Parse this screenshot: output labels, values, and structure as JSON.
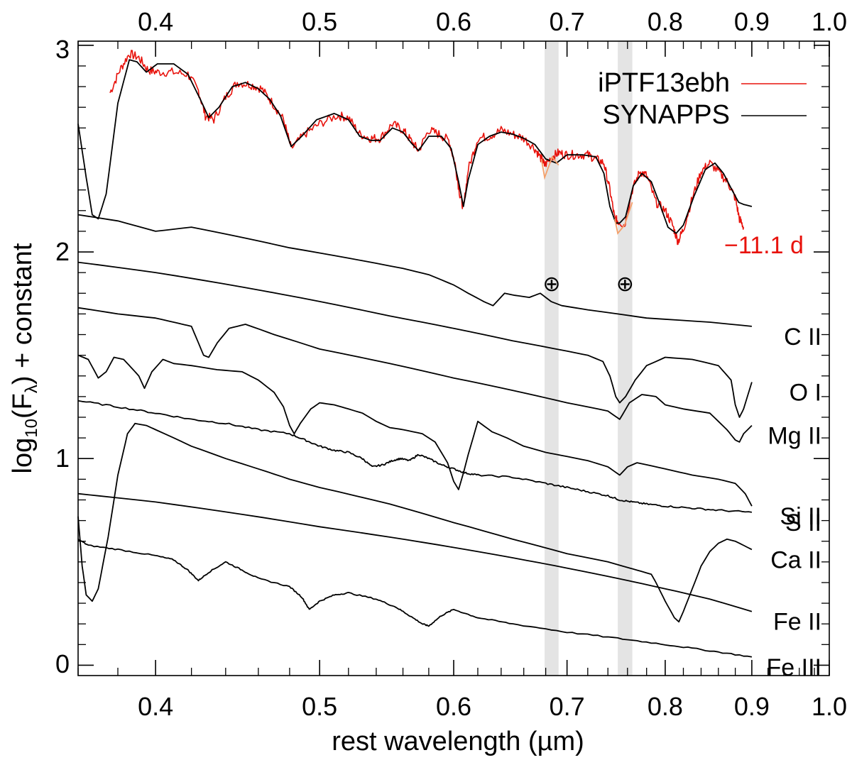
{
  "chart_data": {
    "type": "line",
    "xlabel": "rest wavelength (µm)",
    "ylabel_parts": [
      "log",
      "10",
      "(F",
      "λ",
      ") + constant"
    ],
    "x_scale": "log",
    "xlim": [
      0.36,
      1.0
    ],
    "ylim": [
      -0.05,
      3.02
    ],
    "x_ticks": [
      0.4,
      0.5,
      0.6,
      0.7,
      0.8,
      0.9,
      1.0
    ],
    "x_tick_labels": [
      "0.4",
      "0.5",
      "0.6",
      "0.7",
      "0.8",
      "0.9",
      "1.0"
    ],
    "y_ticks": [
      0,
      1,
      2,
      3
    ],
    "y_tick_labels": [
      "0",
      "1",
      "2",
      "3"
    ],
    "legend": {
      "position": "top-right",
      "entries": [
        {
          "label": "iPTF13ebh",
          "color": "#e8120c"
        },
        {
          "label": "SYNAPPS",
          "color": "#000000"
        }
      ]
    },
    "phase_label": "−11.1 d",
    "phase_color": "#e8120c",
    "telluric_bands": [
      [
        0.679,
        0.692
      ],
      [
        0.75,
        0.765
      ]
    ],
    "telluric_symbol": "⊕",
    "telluric_color": "#e4e4e4",
    "telluric_flux_color": "#f4a06a",
    "series": [
      {
        "name": "iPTF13ebh",
        "color": "#e8120c",
        "noise": 0.022,
        "x": [
          0.376,
          0.381,
          0.386,
          0.391,
          0.396,
          0.401,
          0.409,
          0.418,
          0.424,
          0.428,
          0.433,
          0.44,
          0.447,
          0.455,
          0.462,
          0.469,
          0.476,
          0.481,
          0.49,
          0.5,
          0.512,
          0.52,
          0.528,
          0.536,
          0.543,
          0.552,
          0.56,
          0.566,
          0.572,
          0.58,
          0.588,
          0.596,
          0.601,
          0.605,
          0.608,
          0.612,
          0.62,
          0.63,
          0.64,
          0.65,
          0.66,
          0.67,
          0.676,
          0.679,
          0.686,
          0.692,
          0.7,
          0.71,
          0.72,
          0.728,
          0.736,
          0.742,
          0.747,
          0.75,
          0.757,
          0.765,
          0.773,
          0.78,
          0.79,
          0.8,
          0.808,
          0.814,
          0.82,
          0.83,
          0.84,
          0.85,
          0.862,
          0.872,
          0.88,
          0.885,
          0.89
        ],
        "y": [
          2.77,
          2.88,
          2.96,
          2.94,
          2.88,
          2.87,
          2.87,
          2.86,
          2.78,
          2.66,
          2.64,
          2.75,
          2.82,
          2.81,
          2.79,
          2.72,
          2.64,
          2.5,
          2.57,
          2.62,
          2.66,
          2.65,
          2.57,
          2.55,
          2.55,
          2.62,
          2.59,
          2.54,
          2.49,
          2.59,
          2.57,
          2.54,
          2.43,
          2.28,
          2.21,
          2.4,
          2.55,
          2.56,
          2.59,
          2.57,
          2.55,
          2.5,
          2.45,
          2.42,
          2.46,
          2.48,
          2.47,
          2.47,
          2.47,
          2.45,
          2.43,
          2.3,
          2.16,
          2.15,
          2.13,
          2.3,
          2.39,
          2.37,
          2.24,
          2.2,
          2.13,
          2.05,
          2.11,
          2.26,
          2.39,
          2.43,
          2.38,
          2.33,
          2.26,
          2.16,
          2.12
        ]
      },
      {
        "name": "SYNAPPS",
        "color": "#000000",
        "noise": 0,
        "x": [
          0.36,
          0.364,
          0.367,
          0.37,
          0.374,
          0.38,
          0.386,
          0.39,
          0.395,
          0.401,
          0.41,
          0.418,
          0.425,
          0.43,
          0.436,
          0.444,
          0.452,
          0.46,
          0.467,
          0.474,
          0.481,
          0.488,
          0.498,
          0.51,
          0.52,
          0.528,
          0.536,
          0.543,
          0.552,
          0.56,
          0.566,
          0.572,
          0.58,
          0.59,
          0.598,
          0.604,
          0.608,
          0.612,
          0.62,
          0.63,
          0.64,
          0.65,
          0.66,
          0.67,
          0.68,
          0.69,
          0.7,
          0.715,
          0.728,
          0.736,
          0.742,
          0.748,
          0.752,
          0.758,
          0.766,
          0.775,
          0.785,
          0.795,
          0.803,
          0.812,
          0.82,
          0.832,
          0.845,
          0.856,
          0.866,
          0.876,
          0.884,
          0.89,
          0.9
        ],
        "y": [
          2.62,
          2.36,
          2.18,
          2.16,
          2.28,
          2.72,
          2.93,
          2.92,
          2.87,
          2.91,
          2.91,
          2.86,
          2.74,
          2.65,
          2.7,
          2.8,
          2.82,
          2.79,
          2.74,
          2.66,
          2.51,
          2.56,
          2.64,
          2.67,
          2.64,
          2.56,
          2.54,
          2.54,
          2.6,
          2.58,
          2.53,
          2.49,
          2.56,
          2.56,
          2.5,
          2.34,
          2.22,
          2.35,
          2.52,
          2.56,
          2.58,
          2.57,
          2.55,
          2.52,
          2.45,
          2.43,
          2.47,
          2.47,
          2.46,
          2.38,
          2.22,
          2.14,
          2.14,
          2.17,
          2.32,
          2.38,
          2.34,
          2.22,
          2.12,
          2.09,
          2.13,
          2.27,
          2.4,
          2.43,
          2.38,
          2.3,
          2.24,
          2.23,
          2.22
        ]
      },
      {
        "name": "C II",
        "color": "#000000",
        "noise": 0,
        "x": [
          0.36,
          0.38,
          0.4,
          0.42,
          0.45,
          0.48,
          0.52,
          0.56,
          0.58,
          0.6,
          0.612,
          0.625,
          0.633,
          0.643,
          0.652,
          0.665,
          0.675,
          0.685,
          0.695,
          0.72,
          0.78,
          0.85,
          0.9
        ],
        "y": [
          2.18,
          2.15,
          2.1,
          2.12,
          2.07,
          2.02,
          1.97,
          1.92,
          1.89,
          1.84,
          1.8,
          1.76,
          1.74,
          1.8,
          1.79,
          1.78,
          1.8,
          1.76,
          1.74,
          1.72,
          1.68,
          1.66,
          1.64
        ]
      },
      {
        "name": "O I",
        "color": "#000000",
        "noise": 0,
        "x": [
          0.36,
          0.4,
          0.45,
          0.5,
          0.55,
          0.6,
          0.65,
          0.7,
          0.72,
          0.735,
          0.742,
          0.748,
          0.752,
          0.758,
          0.768,
          0.78,
          0.8,
          0.83,
          0.86,
          0.875,
          0.88,
          0.885,
          0.89,
          0.9
        ],
        "y": [
          1.95,
          1.9,
          1.83,
          1.76,
          1.69,
          1.63,
          1.57,
          1.52,
          1.5,
          1.47,
          1.4,
          1.3,
          1.27,
          1.3,
          1.38,
          1.45,
          1.49,
          1.48,
          1.45,
          1.38,
          1.26,
          1.2,
          1.24,
          1.37
        ]
      },
      {
        "name": "Mg II",
        "color": "#000000",
        "noise": 0,
        "x": [
          0.36,
          0.38,
          0.4,
          0.415,
          0.42,
          0.423,
          0.427,
          0.43,
          0.435,
          0.442,
          0.452,
          0.47,
          0.5,
          0.55,
          0.6,
          0.65,
          0.7,
          0.74,
          0.752,
          0.762,
          0.775,
          0.79,
          0.8,
          0.82,
          0.85,
          0.87,
          0.88,
          0.885,
          0.89,
          0.9
        ],
        "y": [
          1.73,
          1.7,
          1.68,
          1.65,
          1.64,
          1.58,
          1.5,
          1.49,
          1.56,
          1.63,
          1.65,
          1.6,
          1.53,
          1.46,
          1.39,
          1.33,
          1.27,
          1.23,
          1.19,
          1.27,
          1.31,
          1.3,
          1.26,
          1.24,
          1.22,
          1.14,
          1.09,
          1.08,
          1.12,
          1.16
        ]
      },
      {
        "name": "Si II",
        "color": "#000000",
        "noise": 0,
        "x": [
          0.36,
          0.365,
          0.37,
          0.374,
          0.378,
          0.383,
          0.388,
          0.391,
          0.394,
          0.398,
          0.404,
          0.41,
          0.42,
          0.435,
          0.45,
          0.46,
          0.47,
          0.476,
          0.48,
          0.483,
          0.487,
          0.494,
          0.5,
          0.51,
          0.52,
          0.53,
          0.54,
          0.55,
          0.56,
          0.575,
          0.585,
          0.595,
          0.6,
          0.604,
          0.608,
          0.612,
          0.62,
          0.632,
          0.645,
          0.66,
          0.68,
          0.7,
          0.72,
          0.74,
          0.752,
          0.76,
          0.77,
          0.8,
          0.83,
          0.86,
          0.88,
          0.892,
          0.9
        ],
        "y": [
          1.5,
          1.48,
          1.39,
          1.42,
          1.49,
          1.48,
          1.43,
          1.4,
          1.34,
          1.42,
          1.48,
          1.46,
          1.45,
          1.43,
          1.42,
          1.38,
          1.32,
          1.25,
          1.16,
          1.12,
          1.17,
          1.24,
          1.27,
          1.26,
          1.24,
          1.22,
          1.18,
          1.15,
          1.14,
          1.12,
          1.08,
          0.98,
          0.89,
          0.85,
          0.93,
          1.02,
          1.18,
          1.13,
          1.1,
          1.06,
          1.03,
          1.01,
          0.99,
          0.96,
          0.92,
          0.96,
          0.98,
          0.95,
          0.92,
          0.9,
          0.88,
          0.83,
          0.77
        ]
      },
      {
        "name": "S II",
        "color": "#000000",
        "noise": 0.004,
        "x": [
          0.36,
          0.38,
          0.4,
          0.42,
          0.44,
          0.46,
          0.48,
          0.49,
          0.5,
          0.51,
          0.52,
          0.53,
          0.537,
          0.545,
          0.552,
          0.558,
          0.565,
          0.572,
          0.58,
          0.59,
          0.6,
          0.61,
          0.62,
          0.65,
          0.68,
          0.7,
          0.72,
          0.74,
          0.752,
          0.765,
          0.78,
          0.8,
          0.83,
          0.86,
          0.9
        ],
        "y": [
          1.28,
          1.25,
          1.22,
          1.19,
          1.17,
          1.14,
          1.12,
          1.09,
          1.06,
          1.04,
          1.03,
          1.0,
          0.96,
          0.97,
          0.99,
          1.0,
          0.99,
          1.02,
          1.0,
          0.97,
          0.95,
          0.93,
          0.92,
          0.91,
          0.88,
          0.86,
          0.84,
          0.82,
          0.8,
          0.79,
          0.78,
          0.77,
          0.76,
          0.75,
          0.74
        ]
      },
      {
        "name": "Ca II",
        "color": "#000000",
        "noise": 0,
        "x": [
          0.36,
          0.362,
          0.364,
          0.367,
          0.37,
          0.375,
          0.38,
          0.385,
          0.389,
          0.395,
          0.4,
          0.42,
          0.44,
          0.46,
          0.48,
          0.5,
          0.55,
          0.6,
          0.65,
          0.7,
          0.74,
          0.77,
          0.785,
          0.79,
          0.8,
          0.81,
          0.815,
          0.82,
          0.83,
          0.84,
          0.85,
          0.86,
          0.87,
          0.88,
          0.89,
          0.9
        ],
        "y": [
          0.72,
          0.48,
          0.34,
          0.31,
          0.37,
          0.62,
          0.92,
          1.12,
          1.17,
          1.16,
          1.14,
          1.06,
          1.0,
          0.95,
          0.9,
          0.86,
          0.78,
          0.69,
          0.61,
          0.54,
          0.5,
          0.46,
          0.44,
          0.4,
          0.31,
          0.23,
          0.21,
          0.26,
          0.37,
          0.48,
          0.55,
          0.59,
          0.61,
          0.6,
          0.58,
          0.56
        ]
      },
      {
        "name": "Fe II",
        "color": "#000000",
        "noise": 0,
        "x": [
          0.36,
          0.4,
          0.45,
          0.5,
          0.55,
          0.6,
          0.65,
          0.7,
          0.75,
          0.8,
          0.85,
          0.9
        ],
        "y": [
          0.83,
          0.79,
          0.73,
          0.67,
          0.62,
          0.57,
          0.52,
          0.47,
          0.42,
          0.37,
          0.32,
          0.26
        ]
      },
      {
        "name": "Fe III",
        "color": "#000000",
        "noise": 0.003,
        "x": [
          0.36,
          0.365,
          0.38,
          0.4,
          0.41,
          0.418,
          0.424,
          0.43,
          0.44,
          0.45,
          0.46,
          0.48,
          0.488,
          0.493,
          0.5,
          0.51,
          0.52,
          0.54,
          0.555,
          0.565,
          0.575,
          0.58,
          0.59,
          0.6,
          0.62,
          0.65,
          0.7,
          0.75,
          0.8,
          0.85,
          0.9
        ],
        "y": [
          0.61,
          0.58,
          0.56,
          0.53,
          0.51,
          0.46,
          0.41,
          0.45,
          0.5,
          0.46,
          0.42,
          0.38,
          0.33,
          0.27,
          0.31,
          0.34,
          0.35,
          0.32,
          0.28,
          0.24,
          0.2,
          0.19,
          0.24,
          0.27,
          0.23,
          0.2,
          0.16,
          0.13,
          0.1,
          0.07,
          0.04
        ]
      }
    ]
  }
}
